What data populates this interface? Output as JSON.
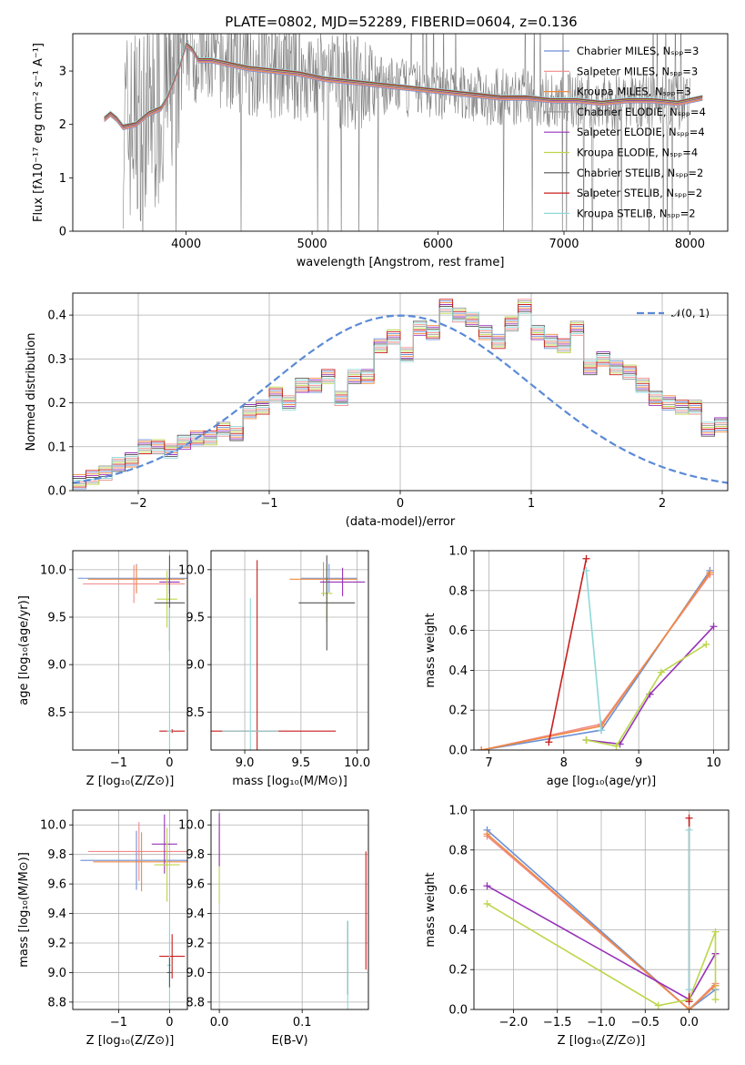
{
  "figure": {
    "title": "PLATE=0802, MJD=52289, FIBERID=0604, z=0.136"
  },
  "palette": {
    "Chabrier MILES": "#6d8fd6",
    "Salpeter MILES": "#f08a8a",
    "Kroupa MILES": "#ef8a3e",
    "Chabrier ELODIE": "#9a9a9a",
    "Salpeter ELODIE": "#9632b8",
    "Kroupa ELODIE": "#bcd64a",
    "Chabrier STELIB": "#555555",
    "Salpeter STELIB": "#c81d1d",
    "Kroupa STELIB": "#8fd8d8"
  },
  "chart_data": [
    {
      "id": "spectrum",
      "type": "line",
      "xlabel": "wavelength [Angstrom, rest frame]",
      "ylabel": "Flux [fλ10⁻¹⁷ erg cm⁻² s⁻¹ A⁻¹]",
      "xlim": [
        3100,
        8300
      ],
      "ylim": [
        0,
        3.7
      ],
      "xticks": [
        "4000",
        "5000",
        "6000",
        "7000",
        "8000"
      ],
      "yticks": [
        "0",
        "1",
        "2",
        "3"
      ],
      "legend": [
        "Chabrier MILES, N_SSP=3",
        "Salpeter MILES, N_SSP=3",
        "Kroupa MILES, N_SSP=3",
        "Chabrier ELODIE, N_SSP=4",
        "Salpeter ELODIE, N_SSP=4",
        "Kroupa ELODIE, N_SSP=4",
        "Chabrier STELIB, N_SSP=2",
        "Salpeter STELIB, N_SSP=2",
        "Kroupa STELIB, N_SSP=2"
      ],
      "legend_position": "right",
      "model_continuum": {
        "x": [
          3350,
          3400,
          3450,
          3500,
          3600,
          3700,
          3800,
          3850,
          3900,
          3950,
          4000,
          4050,
          4100,
          4200,
          4300,
          4400,
          4500,
          4700,
          4900,
          5100,
          5300,
          5500,
          5700,
          5900,
          6100,
          6300,
          6500,
          6700,
          6900,
          7100,
          7300,
          7500,
          7700,
          7900,
          8100
        ],
        "y": [
          2.1,
          2.2,
          2.1,
          1.95,
          2.0,
          2.2,
          2.3,
          2.5,
          2.8,
          3.1,
          3.5,
          3.4,
          3.2,
          3.2,
          3.15,
          3.1,
          3.05,
          3.0,
          2.95,
          2.85,
          2.8,
          2.75,
          2.7,
          2.65,
          2.6,
          2.55,
          2.5,
          2.5,
          2.45,
          2.45,
          2.4,
          2.45,
          2.45,
          2.4,
          2.5
        ]
      }
    },
    {
      "id": "residuals",
      "type": "line",
      "xlabel": "(data-model)/error",
      "ylabel": "Normed distribution",
      "xlim": [
        -2.5,
        2.5
      ],
      "ylim": [
        0,
        0.45
      ],
      "xticks": [
        "−2",
        "−1",
        "0",
        "1",
        "2"
      ],
      "yticks": [
        "0.0",
        "0.1",
        "0.2",
        "0.3",
        "0.4"
      ],
      "legend": [
        "𝒩(0, 1)"
      ],
      "legend_position": "top-right",
      "normal_curve": {
        "mean": 0,
        "std": 1
      },
      "histogram": {
        "bin_width": 0.1,
        "x_start": -2.5,
        "values": [
          0.02,
          0.03,
          0.04,
          0.06,
          0.07,
          0.1,
          0.1,
          0.09,
          0.11,
          0.12,
          0.12,
          0.14,
          0.13,
          0.18,
          0.19,
          0.22,
          0.2,
          0.24,
          0.24,
          0.26,
          0.21,
          0.26,
          0.26,
          0.33,
          0.35,
          0.31,
          0.37,
          0.36,
          0.42,
          0.4,
          0.39,
          0.36,
          0.34,
          0.38,
          0.42,
          0.36,
          0.34,
          0.33,
          0.37,
          0.28,
          0.3,
          0.28,
          0.27,
          0.24,
          0.21,
          0.2,
          0.19,
          0.19,
          0.14,
          0.15,
          0.13,
          0.12,
          0.1,
          0.11,
          0.09,
          0.07,
          0.06,
          0.07,
          0.06,
          0.05
        ]
      }
    },
    {
      "id": "age-vs-z",
      "type": "scatter",
      "xlabel": "Z [log₁₀(Z/Z⊙)]",
      "ylabel": "age  [log₁₀(age/yr)]",
      "xlim": [
        -1.9,
        0.35
      ],
      "ylim": [
        8.1,
        10.2
      ],
      "xticks": [
        "−1",
        "0"
      ],
      "yticks": [
        "8.5",
        "9.0",
        "9.5",
        "10.0"
      ],
      "points": [
        {
          "s": "Chabrier MILES",
          "x": -0.65,
          "y": 9.91,
          "xerr": 1.15,
          "yerr": 0.15
        },
        {
          "s": "Salpeter MILES",
          "x": -0.7,
          "y": 9.85,
          "xerr": 1.0,
          "yerr": 0.2
        },
        {
          "s": "Kroupa MILES",
          "x": -0.65,
          "y": 9.9,
          "xerr": 0.95,
          "yerr": 0.15
        },
        {
          "s": "Salpeter ELODIE",
          "x": 0.0,
          "y": 9.87,
          "xerr": 0.2,
          "yerr": 0.12
        },
        {
          "s": "Kroupa ELODIE",
          "x": -0.05,
          "y": 9.69,
          "xerr": 0.2,
          "yerr": 0.3
        },
        {
          "s": "Chabrier STELIB",
          "x": 0.0,
          "y": 9.65,
          "xerr": 0.3,
          "yerr": 0.5
        },
        {
          "s": "Salpeter STELIB",
          "x": 0.05,
          "y": 8.3,
          "xerr": 0.25,
          "yerr": 0.02
        },
        {
          "s": "Kroupa STELIB",
          "x": 0.0,
          "y": 8.3,
          "xerr": 0.05,
          "yerr": 1.3
        }
      ]
    },
    {
      "id": "age-vs-mass",
      "type": "scatter",
      "xlabel": "mass [log₁₀(M/M⊙)]",
      "ylabel": "",
      "xlim": [
        8.7,
        10.1
      ],
      "ylim": [
        8.1,
        10.2
      ],
      "xticks": [
        "9.0",
        "9.5",
        "10.0"
      ],
      "yticks": [
        "8.5",
        "9.0",
        "9.5",
        "10.0"
      ],
      "points": [
        {
          "s": "Chabrier MILES",
          "x": 9.75,
          "y": 9.91,
          "xerr": 0.25,
          "yerr": 0.15
        },
        {
          "s": "Kroupa MILES",
          "x": 9.7,
          "y": 9.9,
          "xerr": 0.3,
          "yerr": 0.18
        },
        {
          "s": "Salpeter ELODIE",
          "x": 9.87,
          "y": 9.87,
          "xerr": 0.2,
          "yerr": 0.15
        },
        {
          "s": "Kroupa ELODIE",
          "x": 9.73,
          "y": 9.75,
          "xerr": 0.05,
          "yerr": 0.3
        },
        {
          "s": "Chabrier STELIB",
          "x": 9.73,
          "y": 9.65,
          "xerr": 0.25,
          "yerr": 0.5
        },
        {
          "s": "Salpeter STELIB",
          "x": 9.11,
          "y": 8.3,
          "xerr": 0.7,
          "yerr": 1.8
        },
        {
          "s": "Kroupa STELIB",
          "x": 9.05,
          "y": 8.3,
          "xerr": 0.25,
          "yerr": 1.4
        }
      ]
    },
    {
      "id": "weight-vs-age",
      "type": "line",
      "xlabel": "age  [log₁₀(age/yr)]",
      "ylabel": "mass weight",
      "xlim": [
        6.8,
        10.2
      ],
      "ylim": [
        0,
        1.0
      ],
      "xticks": [
        "7",
        "8",
        "9",
        "10"
      ],
      "yticks": [
        "0.0",
        "0.2",
        "0.4",
        "0.6",
        "0.8",
        "1.0"
      ],
      "series": [
        {
          "s": "Chabrier MILES",
          "x": [
            6.9,
            8.5,
            9.95
          ],
          "y": [
            0.0,
            0.1,
            0.9
          ]
        },
        {
          "s": "Salpeter MILES",
          "x": [
            6.9,
            8.5,
            9.95
          ],
          "y": [
            0.0,
            0.13,
            0.88
          ]
        },
        {
          "s": "Kroupa MILES",
          "x": [
            6.9,
            8.5,
            9.95
          ],
          "y": [
            0.0,
            0.12,
            0.89
          ]
        },
        {
          "s": "Salpeter ELODIE",
          "x": [
            8.3,
            8.75,
            9.15,
            10.0
          ],
          "y": [
            0.05,
            0.03,
            0.28,
            0.62
          ]
        },
        {
          "s": "Kroupa ELODIE",
          "x": [
            8.3,
            8.7,
            9.3,
            9.9
          ],
          "y": [
            0.05,
            0.02,
            0.39,
            0.53
          ]
        },
        {
          "s": "Salpeter STELIB",
          "x": [
            7.8,
            8.3
          ],
          "y": [
            0.04,
            0.96
          ]
        },
        {
          "s": "Kroupa STELIB",
          "x": [
            8.3,
            8.5
          ],
          "y": [
            0.9,
            0.1
          ]
        }
      ]
    },
    {
      "id": "mass-vs-z",
      "type": "scatter",
      "xlabel": "Z [log₁₀(Z/Z⊙)]",
      "ylabel": "mass [log₁₀(M/M⊙)]",
      "xlim": [
        -1.9,
        0.35
      ],
      "ylim": [
        8.75,
        10.1
      ],
      "xticks": [
        "−1",
        "0"
      ],
      "yticks": [
        "8.8",
        "9.0",
        "9.2",
        "9.4",
        "9.6",
        "9.8",
        "10.0"
      ],
      "points": [
        {
          "s": "Chabrier MILES",
          "x": -0.65,
          "y": 9.76,
          "xerr": 1.1,
          "yerr": 0.2
        },
        {
          "s": "Salpeter MILES",
          "x": -0.6,
          "y": 9.82,
          "xerr": 1.0,
          "yerr": 0.2
        },
        {
          "s": "Kroupa MILES",
          "x": -0.55,
          "y": 9.75,
          "xerr": 0.95,
          "yerr": 0.2
        },
        {
          "s": "Salpeter ELODIE",
          "x": -0.1,
          "y": 9.87,
          "xerr": 0.25,
          "yerr": 0.2
        },
        {
          "s": "Kroupa ELODIE",
          "x": -0.05,
          "y": 9.73,
          "xerr": 0.25,
          "yerr": 0.25
        },
        {
          "s": "Salpeter STELIB",
          "x": 0.05,
          "y": 9.11,
          "xerr": 0.25,
          "yerr": 0.15
        },
        {
          "s": "Kroupa STELIB",
          "x": 0.0,
          "y": 9.05,
          "xerr": 0.05,
          "yerr": 0.3
        },
        {
          "s": "Chabrier STELIB",
          "x": 0.0,
          "y": 9.0,
          "xerr": 0.05,
          "yerr": 0.1
        }
      ]
    },
    {
      "id": "mass-vs-ebv",
      "type": "scatter",
      "xlabel": "E(B-V)",
      "ylabel": "",
      "xlim": [
        -0.01,
        0.18
      ],
      "ylim": [
        8.75,
        10.1
      ],
      "xticks": [
        "0.0",
        "0.1"
      ],
      "yticks": [
        "8.8",
        "9.0",
        "9.2",
        "9.4",
        "9.6",
        "9.8",
        "10.0"
      ],
      "points": [
        {
          "s": "Kroupa ELODIE",
          "x": 0.0,
          "y": 9.75,
          "xerr": 0.0,
          "yerr": 0.28
        },
        {
          "s": "Salpeter ELODIE",
          "x": 0.0,
          "y": 9.9,
          "xerr": 0.0,
          "yerr": 0.18
        },
        {
          "s": "Chabrier STELIB",
          "x": 0.155,
          "y": 9.1,
          "xerr": 0.0,
          "yerr": 0.25
        },
        {
          "s": "Kroupa STELIB",
          "x": 0.155,
          "y": 9.05,
          "xerr": 0.0,
          "yerr": 0.3
        },
        {
          "s": "Salpeter STELIB",
          "x": 0.177,
          "y": 9.42,
          "xerr": 0.0,
          "yerr": 0.4
        }
      ]
    },
    {
      "id": "weight-vs-z",
      "type": "line",
      "xlabel": "Z [log₁₀(Z/Z⊙)]",
      "ylabel": "mass weight",
      "xlim": [
        -2.45,
        0.45
      ],
      "ylim": [
        0,
        1.0
      ],
      "xticks": [
        "−2.0",
        "−1.5",
        "−1.0",
        "−0.5",
        "0.0"
      ],
      "yticks": [
        "0.0",
        "0.2",
        "0.4",
        "0.6",
        "0.8",
        "1.0"
      ],
      "series": [
        {
          "s": "Chabrier MILES",
          "x": [
            -2.3,
            0.0,
            0.3
          ],
          "y": [
            0.9,
            0.0,
            0.1
          ]
        },
        {
          "s": "Salpeter MILES",
          "x": [
            -2.3,
            0.0,
            0.3
          ],
          "y": [
            0.87,
            0.0,
            0.13
          ]
        },
        {
          "s": "Kroupa MILES",
          "x": [
            -2.3,
            0.0,
            0.3
          ],
          "y": [
            0.88,
            0.0,
            0.12
          ]
        },
        {
          "s": "Salpeter ELODIE",
          "x": [
            -2.3,
            0.0,
            0.3
          ],
          "y": [
            0.62,
            0.05,
            0.28
          ]
        },
        {
          "s": "Kroupa ELODIE",
          "x": [
            -2.3,
            -0.35,
            0.0,
            0.3,
            0.3
          ],
          "y": [
            0.53,
            0.02,
            0.05,
            0.39,
            0.05
          ]
        },
        {
          "s": "Salpeter STELIB",
          "x": [
            0.0,
            0.0
          ],
          "y": [
            0.96,
            0.04
          ]
        },
        {
          "s": "Kroupa STELIB",
          "x": [
            0.0,
            0.0
          ],
          "y": [
            0.9,
            0.1
          ]
        }
      ]
    }
  ]
}
